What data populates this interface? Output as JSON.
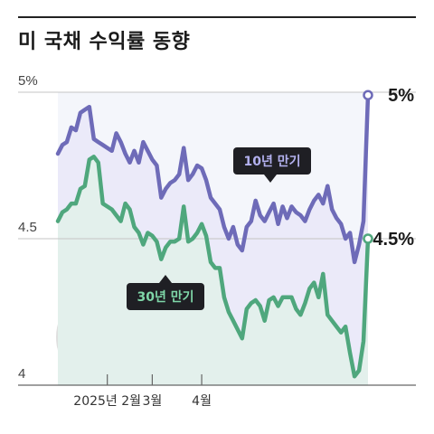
{
  "header": {
    "title": "미 국채 수익률 동향"
  },
  "chart_data": {
    "type": "line",
    "title": "미 국채 수익률 동향",
    "ylim": [
      4.0,
      5.0
    ],
    "y_ticks": [
      {
        "value": 5.0,
        "label": "5%"
      },
      {
        "value": 4.5,
        "label": "4.5"
      },
      {
        "value": 4.0,
        "label": "4"
      }
    ],
    "x_ticks": [
      {
        "index": 11,
        "label": "2025년 2월"
      },
      {
        "index": 21,
        "label": "3월"
      },
      {
        "index": 32,
        "label": "4월"
      }
    ],
    "grid": true,
    "series": [
      {
        "name": "10년 만기",
        "color": "#6e6bb8",
        "fill": "#e9e8f8",
        "end_label": "5%",
        "values": [
          4.79,
          4.82,
          4.83,
          4.88,
          4.87,
          4.93,
          4.94,
          4.95,
          4.84,
          4.83,
          4.82,
          4.81,
          4.8,
          4.86,
          4.83,
          4.79,
          4.76,
          4.8,
          4.76,
          4.83,
          4.8,
          4.77,
          4.75,
          4.64,
          4.67,
          4.69,
          4.7,
          4.72,
          4.81,
          4.7,
          4.72,
          4.75,
          4.74,
          4.7,
          4.64,
          4.62,
          4.6,
          4.54,
          4.5,
          4.54,
          4.48,
          4.46,
          4.54,
          4.56,
          4.63,
          4.58,
          4.56,
          4.59,
          4.62,
          4.55,
          4.61,
          4.57,
          4.61,
          4.59,
          4.58,
          4.56,
          4.6,
          4.63,
          4.65,
          4.62,
          4.68,
          4.6,
          4.57,
          4.55,
          4.5,
          4.52,
          4.42,
          4.48,
          4.56,
          4.99
        ]
      },
      {
        "name": "30년 만기",
        "color": "#4fa77d",
        "fill": "#e2f1ea",
        "end_label": "4.5%",
        "values": [
          4.56,
          4.59,
          4.6,
          4.62,
          4.62,
          4.67,
          4.68,
          4.77,
          4.78,
          4.76,
          4.62,
          4.61,
          4.6,
          4.58,
          4.56,
          4.62,
          4.6,
          4.54,
          4.52,
          4.48,
          4.52,
          4.51,
          4.49,
          4.43,
          4.47,
          4.49,
          4.49,
          4.5,
          4.61,
          4.49,
          4.5,
          4.52,
          4.55,
          4.51,
          4.42,
          4.4,
          4.4,
          4.3,
          4.25,
          4.22,
          4.19,
          4.16,
          4.26,
          4.28,
          4.29,
          4.27,
          4.22,
          4.29,
          4.3,
          4.27,
          4.3,
          4.3,
          4.3,
          4.26,
          4.24,
          4.28,
          4.33,
          4.35,
          4.3,
          4.38,
          4.24,
          4.22,
          4.2,
          4.18,
          4.2,
          4.11,
          4.03,
          4.05,
          4.15,
          4.5
        ]
      }
    ],
    "callouts": [
      {
        "series": "10년 만기",
        "label": "10년 만기"
      },
      {
        "series": "30년 만기",
        "label": "30년 만기"
      }
    ],
    "decoration": "us-flag"
  }
}
